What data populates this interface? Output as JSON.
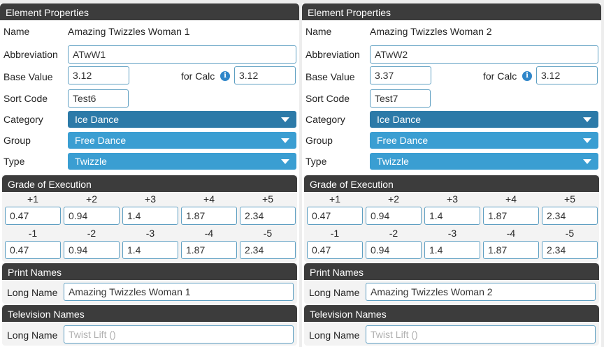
{
  "panels": [
    {
      "element_properties": {
        "header": "Element Properties",
        "name_label": "Name",
        "name_value": "Amazing Twizzles Woman 1",
        "abbreviation_label": "Abbreviation",
        "abbreviation_value": "ATwW1",
        "base_value_label": "Base Value",
        "base_value": "3.12",
        "for_calc_label": "for Calc",
        "for_calc_value": "3.12",
        "info_icon": "info-icon",
        "sort_code_label": "Sort Code",
        "sort_code_value": "Test6",
        "category_label": "Category",
        "category_value": "Ice Dance",
        "group_label": "Group",
        "group_value": "Free Dance",
        "type_label": "Type",
        "type_value": "Twizzle"
      },
      "goe": {
        "header": "Grade of Execution",
        "plus_labels": [
          "+1",
          "+2",
          "+3",
          "+4",
          "+5"
        ],
        "plus_values": [
          "0.47",
          "0.94",
          "1.4",
          "1.87",
          "2.34"
        ],
        "minus_labels": [
          "-1",
          "-2",
          "-3",
          "-4",
          "-5"
        ],
        "minus_values": [
          "0.47",
          "0.94",
          "1.4",
          "1.87",
          "2.34"
        ]
      },
      "print_names": {
        "header": "Print Names",
        "long_name_label": "Long Name",
        "long_name_value": "Amazing Twizzles Woman 1"
      },
      "television_names": {
        "header": "Television Names",
        "long_name_label": "Long Name",
        "long_name_placeholder": "Twist Lift ()"
      }
    },
    {
      "element_properties": {
        "header": "Element Properties",
        "name_label": "Name",
        "name_value": "Amazing Twizzles Woman 2",
        "abbreviation_label": "Abbreviation",
        "abbreviation_value": "ATwW2",
        "base_value_label": "Base Value",
        "base_value": "3.37",
        "for_calc_label": "for Calc",
        "for_calc_value": "3.12",
        "info_icon": "info-icon",
        "sort_code_label": "Sort Code",
        "sort_code_value": "Test7",
        "category_label": "Category",
        "category_value": "Ice Dance",
        "group_label": "Group",
        "group_value": "Free Dance",
        "type_label": "Type",
        "type_value": "Twizzle"
      },
      "goe": {
        "header": "Grade of Execution",
        "plus_labels": [
          "+1",
          "+2",
          "+3",
          "+4",
          "+5"
        ],
        "plus_values": [
          "0.47",
          "0.94",
          "1.4",
          "1.87",
          "2.34"
        ],
        "minus_labels": [
          "-1",
          "-2",
          "-3",
          "-4",
          "-5"
        ],
        "minus_values": [
          "0.47",
          "0.94",
          "1.4",
          "1.87",
          "2.34"
        ]
      },
      "print_names": {
        "header": "Print Names",
        "long_name_label": "Long Name",
        "long_name_value": "Amazing Twizzles Woman 2"
      },
      "television_names": {
        "header": "Television Names",
        "long_name_label": "Long Name",
        "long_name_placeholder": "Twist Lift ()"
      }
    }
  ],
  "colors": {
    "header_bg": "#3c3c3c",
    "select_bg": "#3a9ed2",
    "select_dark_bg": "#2c7aa8",
    "input_border": "#5e9fc2"
  }
}
